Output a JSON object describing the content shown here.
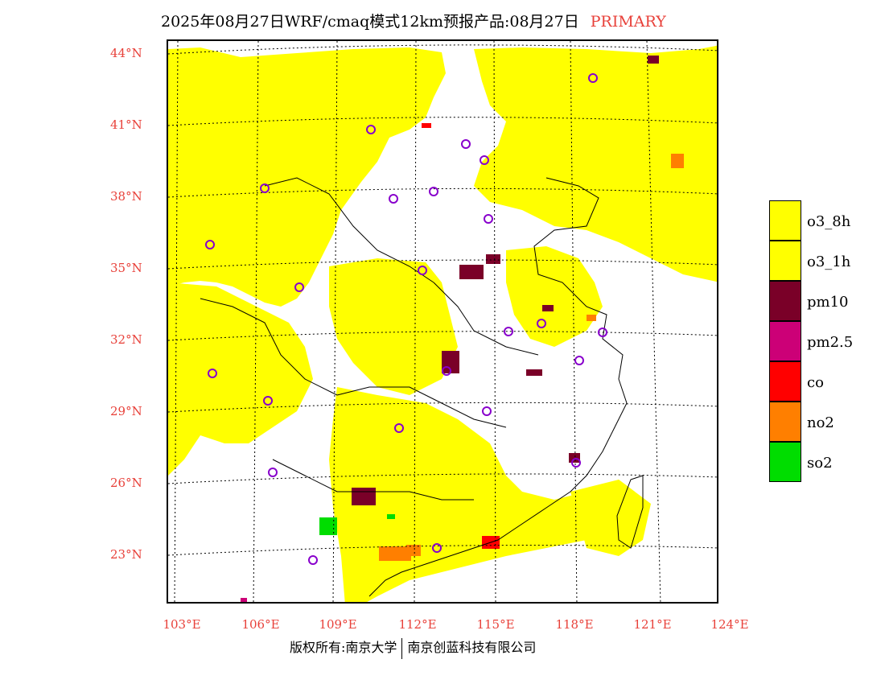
{
  "title": {
    "main": "2025年08月27日WRF/cmaq模式12km预报产品:08月27日",
    "tag": "PRIMARY"
  },
  "axes": {
    "lat_labels": [
      "44°N",
      "41°N",
      "38°N",
      "35°N",
      "32°N",
      "29°N",
      "26°N",
      "23°N"
    ],
    "lon_labels": [
      "103°E",
      "106°E",
      "109°E",
      "112°E",
      "115°E",
      "118°E",
      "121°E",
      "124°E"
    ]
  },
  "legend": {
    "items": [
      {
        "label": "o3_8h",
        "color": "#ffff00"
      },
      {
        "label": "o3_1h",
        "color": "#ffff00"
      },
      {
        "label": "pm10",
        "color": "#7a0028"
      },
      {
        "label": "pm2.5",
        "color": "#cc0077"
      },
      {
        "label": "co",
        "color": "#ff0000"
      },
      {
        "label": "no2",
        "color": "#ff7f00"
      },
      {
        "label": "so2",
        "color": "#00dd00"
      }
    ]
  },
  "colors": {
    "ozone": "#ffff00",
    "pm10": "#7a0028",
    "pm25": "#cc0077",
    "co": "#ff0000",
    "no2": "#ff7f00",
    "so2": "#00dd00",
    "city_marker": "#8800cc",
    "axis_labels": "#e8413a"
  },
  "footer": {
    "copyright": "版权所有:南京大学",
    "company": "南京创蓝科技有限公司"
  }
}
